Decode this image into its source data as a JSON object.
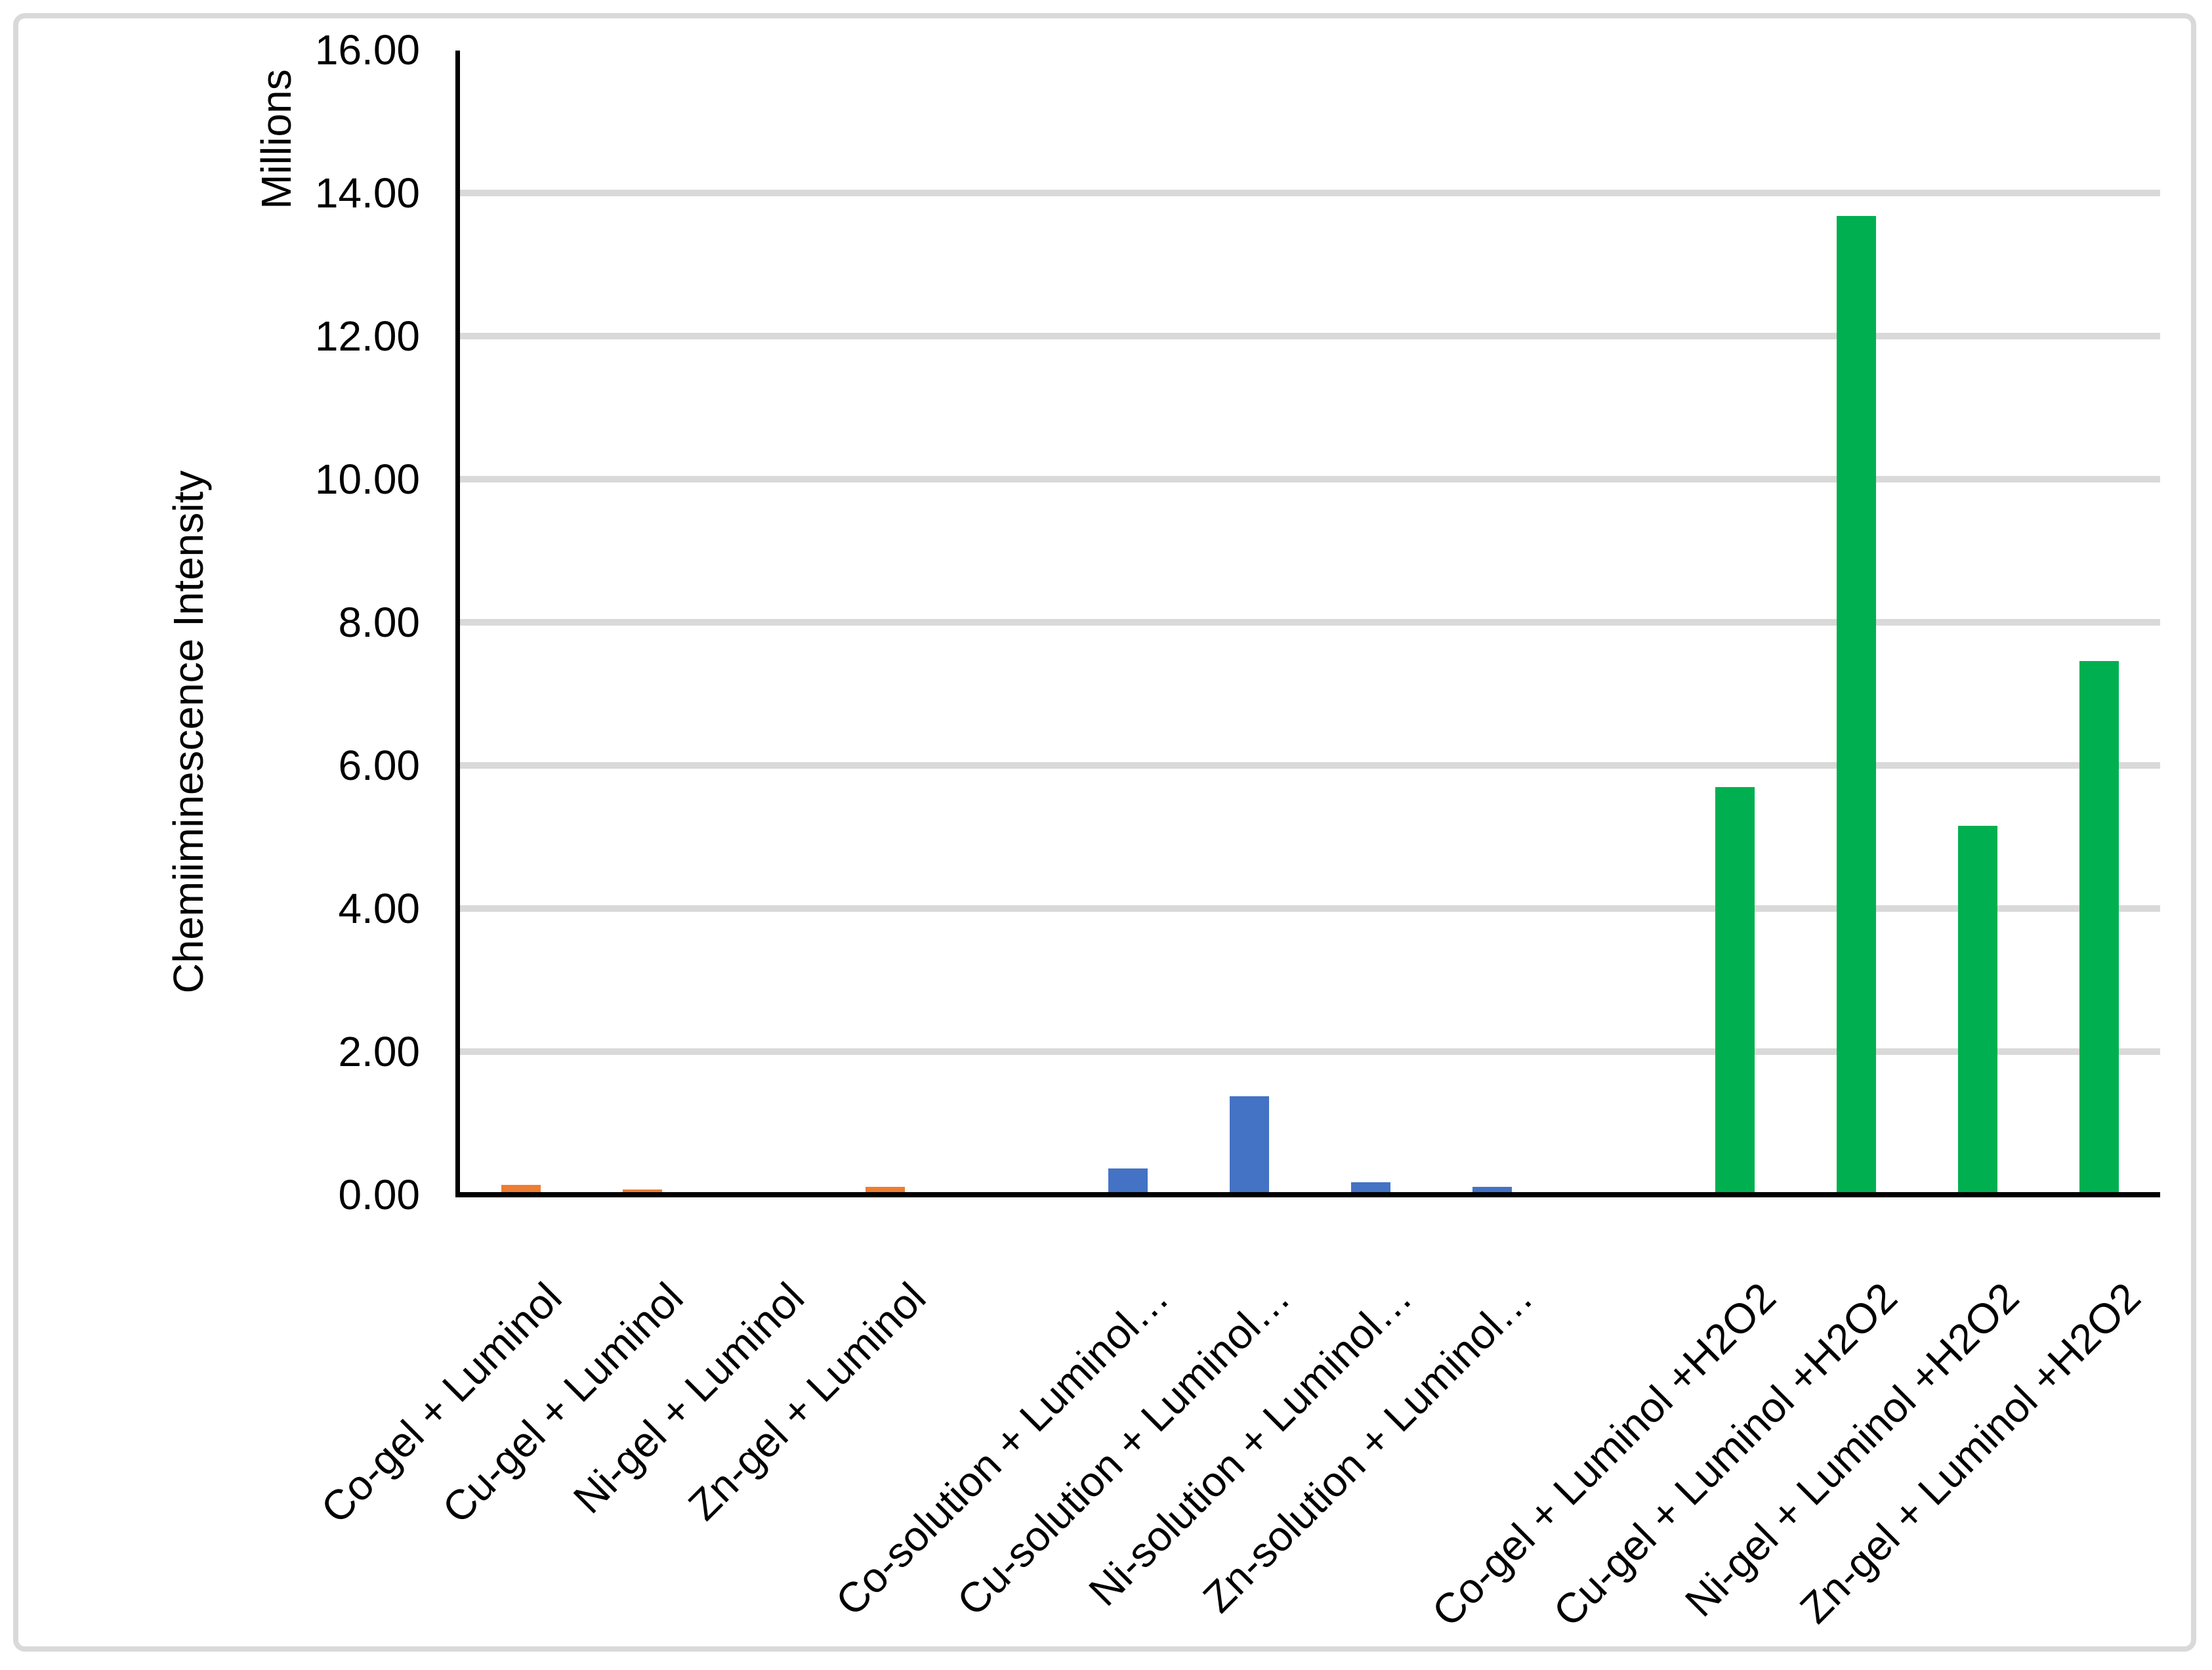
{
  "chart_data": {
    "type": "bar",
    "title": "",
    "xlabel": "",
    "ylabel": "Chemiiminescence Intensity",
    "y_units_label": "Millions",
    "ylim": [
      0,
      16
    ],
    "ytick_step": 2,
    "ytick_labels": [
      "16.00",
      "14.00",
      "12.00",
      "10.00",
      "8.00",
      "6.00",
      "4.00",
      "2.00",
      "0.00"
    ],
    "grid": true,
    "legend": "none",
    "colors": {
      "gel_series": "#ED7D31",
      "solution_series": "#4472C4",
      "gel_h2o2_series": "#00B050",
      "gridline": "#D9D9D9",
      "axis": "#000000",
      "chart_border": "#D9D9D9",
      "background": "#FFFFFF"
    },
    "groups": [
      {
        "color": "#ED7D31",
        "bars": [
          {
            "label": "Co-gel + Luminol",
            "value": 0.1
          },
          {
            "label": "Cu-gel + Luminol",
            "value": 0.04
          },
          {
            "label": "Ni-gel + Luminol",
            "value": 0.0
          },
          {
            "label": "Zn-gel + Luminol",
            "value": 0.07
          }
        ]
      },
      {
        "color": "#4472C4",
        "bars": [
          {
            "label": "Co-solution + Luminol…",
            "value": 0.33
          },
          {
            "label": "Cu-solution + Luminol…",
            "value": 1.34
          },
          {
            "label": "Ni-solution + Luminol…",
            "value": 0.14
          },
          {
            "label": "Zn-solution + Luminol…",
            "value": 0.07
          }
        ]
      },
      {
        "color": "#00B050",
        "bars": [
          {
            "label": "Co-gel + Luminol +H2O2",
            "value": 5.66
          },
          {
            "label": "Cu-gel + Luminol +H2O2",
            "value": 13.64
          },
          {
            "label": "Ni-gel + Luminol +H2O2",
            "value": 5.12
          },
          {
            "label": "Zn-gel + Luminol +H2O2",
            "value": 7.42
          }
        ]
      }
    ]
  }
}
